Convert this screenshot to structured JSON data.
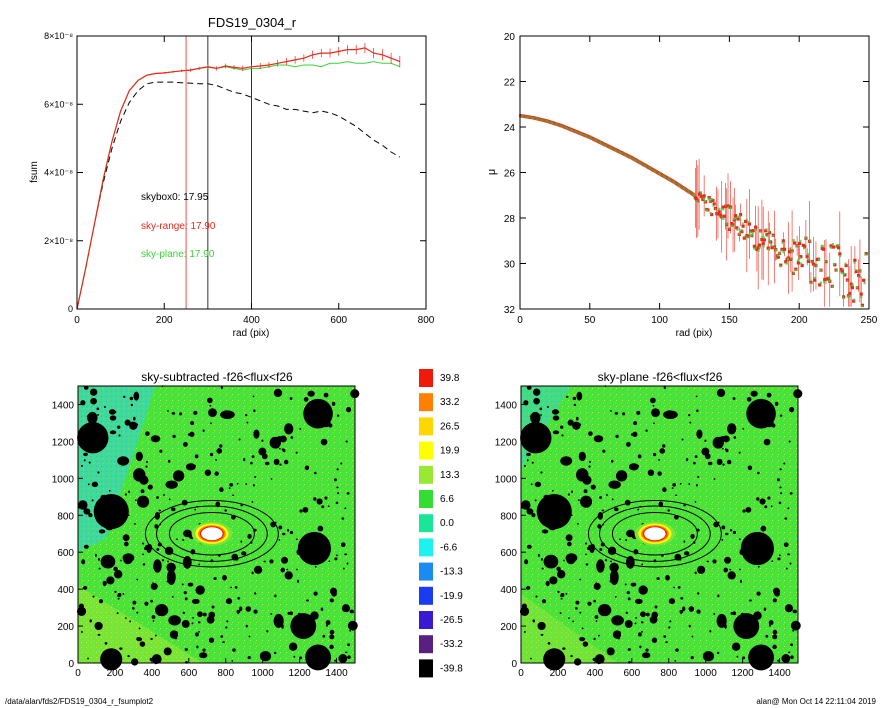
{
  "footer": {
    "left": "/data/alan/fds2/FDS19_0304_r_fsumplot2",
    "right": "alan@  Mon Oct 14 22:11:04 2019"
  },
  "colors": {
    "black": "#000000",
    "red": "#e8291c",
    "green": "#3bd43b",
    "olive": "#7a7a1a",
    "map_bg": "#47e23c",
    "map_speckle_cyan": "#2fe0c8",
    "map_speckle_yellow": "#c8f020"
  },
  "chart_data": [
    {
      "id": "fsum",
      "type": "line",
      "title": "FDS19_0304_r",
      "xlabel": "rad (pix)",
      "ylabel": "fsum",
      "xlim": [
        0,
        800
      ],
      "ylim": [
        0,
        8e-08
      ],
      "xticks": [
        "0",
        "200",
        "400",
        "600",
        "800"
      ],
      "yticks": [
        {
          "value": 0,
          "label": "0"
        },
        {
          "value": 2e-08,
          "label": "2×10⁻⁸"
        },
        {
          "value": 4e-08,
          "label": "4×10⁻⁸"
        },
        {
          "value": 6e-08,
          "label": "6×10⁻⁸"
        },
        {
          "value": 8e-08,
          "label": "8×10⁻⁸"
        }
      ],
      "vlines": [
        {
          "x": 250,
          "color": "#e8291c"
        },
        {
          "x": 300,
          "color": "#000000"
        },
        {
          "x": 400,
          "color": "#000000"
        }
      ],
      "annotations": [
        {
          "text": "skybox0: 17.95",
          "color": "#000000"
        },
        {
          "text": "sky-range: 17.90",
          "color": "#e8291c"
        },
        {
          "text": "sky-plane: 17.90",
          "color": "#3bd43b"
        }
      ],
      "series": [
        {
          "style": "dashed",
          "color": "#000000",
          "x": [
            0,
            20,
            40,
            60,
            80,
            100,
            120,
            140,
            160,
            180,
            200,
            220,
            240,
            260,
            280,
            300,
            320,
            340,
            360,
            380,
            400,
            420,
            440,
            460,
            480,
            500,
            520,
            540,
            560,
            580,
            600,
            620,
            640,
            660,
            680,
            700,
            720,
            740
          ],
          "y": [
            0,
            1.2e-08,
            2.5e-08,
            3.7e-08,
            4.7e-08,
            5.5e-08,
            6.05e-08,
            6.4e-08,
            6.6e-08,
            6.65e-08,
            6.65e-08,
            6.65e-08,
            6.63e-08,
            6.62e-08,
            6.6e-08,
            6.6e-08,
            6.55e-08,
            6.45e-08,
            6.35e-08,
            6.3e-08,
            6.2e-08,
            6.1e-08,
            6e-08,
            5.95e-08,
            5.85e-08,
            5.85e-08,
            5.8e-08,
            5.75e-08,
            5.8e-08,
            5.75e-08,
            5.65e-08,
            5.5e-08,
            5.35e-08,
            5.15e-08,
            4.95e-08,
            4.8e-08,
            4.6e-08,
            4.45e-08
          ]
        },
        {
          "style": "solid",
          "color": "#3bd43b",
          "x": [
            0,
            20,
            40,
            60,
            80,
            100,
            120,
            140,
            160,
            180,
            200,
            220,
            240,
            260,
            280,
            300,
            320,
            340,
            360,
            380,
            400,
            420,
            440,
            460,
            480,
            500,
            520,
            540,
            560,
            580,
            600,
            620,
            640,
            660,
            680,
            700,
            720,
            740
          ],
          "y": [
            0,
            1.2e-08,
            2.5e-08,
            3.8e-08,
            4.9e-08,
            5.8e-08,
            6.4e-08,
            6.7e-08,
            6.85e-08,
            6.9e-08,
            6.92e-08,
            6.95e-08,
            6.98e-08,
            7e-08,
            7.05e-08,
            7.08e-08,
            7.05e-08,
            7.1e-08,
            7.05e-08,
            7e-08,
            7.05e-08,
            7.05e-08,
            7.1e-08,
            7.15e-08,
            7.15e-08,
            7.1e-08,
            7.15e-08,
            7.15e-08,
            7.1e-08,
            7.2e-08,
            7.2e-08,
            7.25e-08,
            7.2e-08,
            7.2e-08,
            7.25e-08,
            7.2e-08,
            7.2e-08,
            7.1e-08
          ]
        },
        {
          "style": "errorbar",
          "color": "#e8291c",
          "x": [
            0,
            20,
            40,
            60,
            80,
            100,
            120,
            140,
            160,
            180,
            200,
            220,
            240,
            260,
            280,
            300,
            320,
            340,
            360,
            380,
            400,
            420,
            440,
            460,
            480,
            500,
            520,
            540,
            560,
            580,
            600,
            620,
            640,
            660,
            680,
            700,
            720,
            740
          ],
          "y": [
            0,
            1.2e-08,
            2.5e-08,
            3.8e-08,
            4.9e-08,
            5.8e-08,
            6.4e-08,
            6.7e-08,
            6.85e-08,
            6.9e-08,
            6.92e-08,
            6.95e-08,
            6.98e-08,
            7e-08,
            7.05e-08,
            7.1e-08,
            7.05e-08,
            7.12e-08,
            7.08e-08,
            7.05e-08,
            7.1e-08,
            7.12e-08,
            7.15e-08,
            7.2e-08,
            7.25e-08,
            7.3e-08,
            7.35e-08,
            7.45e-08,
            7.5e-08,
            7.5e-08,
            7.55e-08,
            7.6e-08,
            7.6e-08,
            7.65e-08,
            7.5e-08,
            7.45e-08,
            7.35e-08,
            7.25e-08
          ],
          "err": [
            0,
            0,
            0,
            0,
            0,
            0,
            0,
            0,
            0,
            2e-10,
            3e-10,
            3e-10,
            4e-10,
            5e-10,
            5e-10,
            6e-10,
            6e-10,
            7e-10,
            7e-10,
            8e-10,
            8e-10,
            9e-10,
            9e-10,
            1e-09,
            1e-09,
            1.1e-09,
            1.1e-09,
            1.2e-09,
            1.2e-09,
            1.3e-09,
            1.3e-09,
            1.4e-09,
            1.4e-09,
            1.5e-09,
            1.5e-09,
            1.6e-09,
            1.6e-09,
            1.7e-09
          ]
        }
      ]
    },
    {
      "id": "mu",
      "type": "scatter",
      "title": "",
      "xlabel": "rad (pix)",
      "ylabel": "μ",
      "xlim": [
        0,
        250
      ],
      "ylim": [
        32,
        20
      ],
      "xticks": [
        "0",
        "50",
        "100",
        "150",
        "200",
        "250"
      ],
      "yticks": [
        "20",
        "22",
        "24",
        "26",
        "28",
        "30",
        "32"
      ],
      "profile_points": [
        [
          0,
          23.5
        ],
        [
          10,
          23.6
        ],
        [
          20,
          23.75
        ],
        [
          30,
          23.95
        ],
        [
          40,
          24.2
        ],
        [
          50,
          24.45
        ],
        [
          60,
          24.75
        ],
        [
          70,
          25.05
        ],
        [
          80,
          25.35
        ],
        [
          90,
          25.7
        ],
        [
          100,
          26.05
        ],
        [
          110,
          26.4
        ],
        [
          120,
          26.8
        ],
        [
          130,
          27.2
        ],
        [
          140,
          27.6
        ],
        [
          150,
          28.0
        ],
        [
          160,
          28.4
        ],
        [
          170,
          28.75
        ],
        [
          180,
          29.1
        ],
        [
          190,
          29.4
        ],
        [
          200,
          29.7
        ],
        [
          210,
          29.95
        ],
        [
          220,
          30.2
        ],
        [
          230,
          30.45
        ],
        [
          240,
          30.7
        ],
        [
          250,
          30.9
        ]
      ],
      "scatter_noise_start": 125,
      "series": [
        {
          "name": "",
          "color": "#e8291c"
        },
        {
          "name": "",
          "color": "#3bd43b"
        }
      ]
    },
    {
      "id": "map_left",
      "type": "heatmap",
      "title": "sky-subtracted -f26<flux<f26",
      "xlim": [
        0,
        1500
      ],
      "ylim": [
        0,
        1500
      ],
      "xticks": [
        "0",
        "200",
        "400",
        "600",
        "800",
        "1000",
        "1200",
        "1400"
      ],
      "yticks": [
        "0",
        "200",
        "400",
        "600",
        "800",
        "1000",
        "1200",
        "1400"
      ],
      "galaxy_center": [
        725,
        700
      ],
      "ellipses": [
        [
          360,
          180
        ],
        [
          300,
          150
        ],
        [
          230,
          115
        ]
      ],
      "big_masks": [
        [
          80,
          1220,
          85
        ],
        [
          180,
          820,
          95
        ],
        [
          1300,
          1350,
          80
        ],
        [
          1280,
          620,
          90
        ],
        [
          1220,
          200,
          70
        ],
        [
          180,
          20,
          60
        ],
        [
          1300,
          30,
          70
        ]
      ]
    },
    {
      "id": "map_right",
      "type": "heatmap",
      "title": "sky-plane -f26<flux<f26",
      "xlim": [
        0,
        1500
      ],
      "ylim": [
        0,
        1500
      ],
      "xticks": [
        "0",
        "200",
        "400",
        "600",
        "800",
        "1000",
        "1200",
        "1400"
      ],
      "yticks": [
        "0",
        "200",
        "400",
        "600",
        "800",
        "1000",
        "1200",
        "1400"
      ],
      "galaxy_center": [
        725,
        700
      ],
      "ellipses": [
        [
          360,
          180
        ],
        [
          300,
          150
        ],
        [
          230,
          115
        ]
      ],
      "big_masks": [
        [
          80,
          1220,
          85
        ],
        [
          180,
          820,
          95
        ],
        [
          1300,
          1350,
          80
        ],
        [
          1280,
          620,
          90
        ],
        [
          1220,
          200,
          70
        ],
        [
          180,
          20,
          60
        ],
        [
          1300,
          30,
          70
        ]
      ]
    },
    {
      "id": "colorbar",
      "type": "table",
      "levels": [
        {
          "label": "39.8",
          "color": "#f01a0a"
        },
        {
          "label": "33.2",
          "color": "#ff8000"
        },
        {
          "label": "26.5",
          "color": "#ffd700"
        },
        {
          "label": "19.9",
          "color": "#ffff00"
        },
        {
          "label": "13.3",
          "color": "#9be834"
        },
        {
          "label": "6.6",
          "color": "#33dd33"
        },
        {
          "label": "0.0",
          "color": "#1ae69a"
        },
        {
          "label": "-6.6",
          "color": "#1cf2ee"
        },
        {
          "label": "-13.3",
          "color": "#1a8cf0"
        },
        {
          "label": "-19.9",
          "color": "#1a3cf0"
        },
        {
          "label": "-26.5",
          "color": "#3a1ad0"
        },
        {
          "label": "-33.2",
          "color": "#5a2080"
        },
        {
          "label": "-39.8",
          "color": "#000000"
        }
      ]
    }
  ]
}
